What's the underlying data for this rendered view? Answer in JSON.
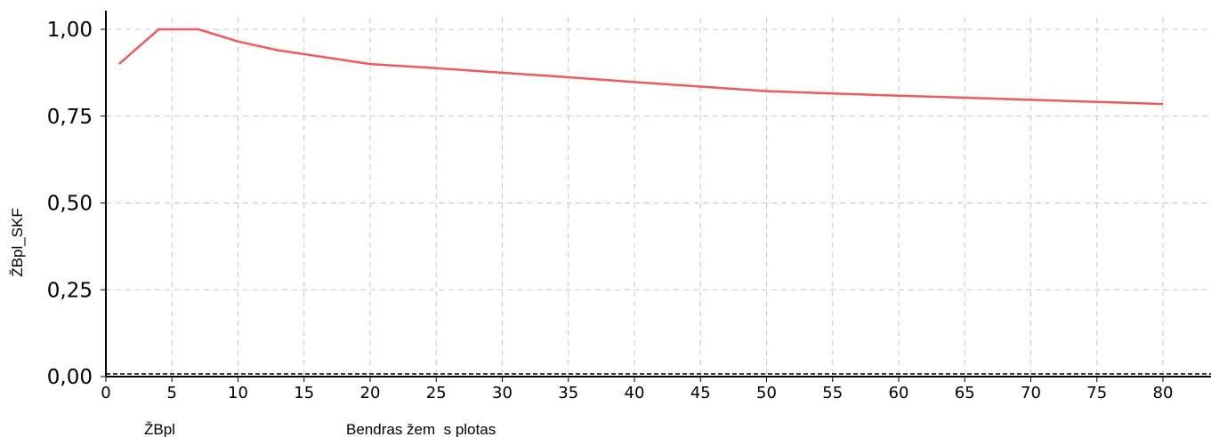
{
  "chart_data": {
    "type": "line",
    "ylabel": "ŽBpl_SKF",
    "xlabel": "Bendras žem  s plotas",
    "x_sublabel": "ŽBpl",
    "xlim": [
      0,
      83
    ],
    "ylim": [
      0,
      1.0
    ],
    "x_ticks": [
      0,
      5,
      10,
      15,
      20,
      25,
      30,
      35,
      40,
      45,
      50,
      55,
      60,
      65,
      70,
      75,
      80
    ],
    "y_ticks": [
      0.0,
      0.25,
      0.5,
      0.75,
      1.0
    ],
    "y_tick_labels": [
      "0,00",
      "0,25",
      "0,50",
      "0,75",
      "1,00"
    ],
    "grid": true,
    "series": [
      {
        "color": "#f05a5a",
        "x": [
          1,
          4,
          7,
          10,
          13,
          20,
          25,
          30,
          35,
          40,
          45,
          50,
          55,
          60,
          65,
          70,
          75,
          80
        ],
        "y": [
          0.9,
          1.0,
          1.0,
          0.965,
          0.94,
          0.9,
          0.888,
          0.875,
          0.862,
          0.848,
          0.835,
          0.822,
          0.815,
          0.809,
          0.803,
          0.797,
          0.791,
          0.785
        ]
      }
    ]
  }
}
